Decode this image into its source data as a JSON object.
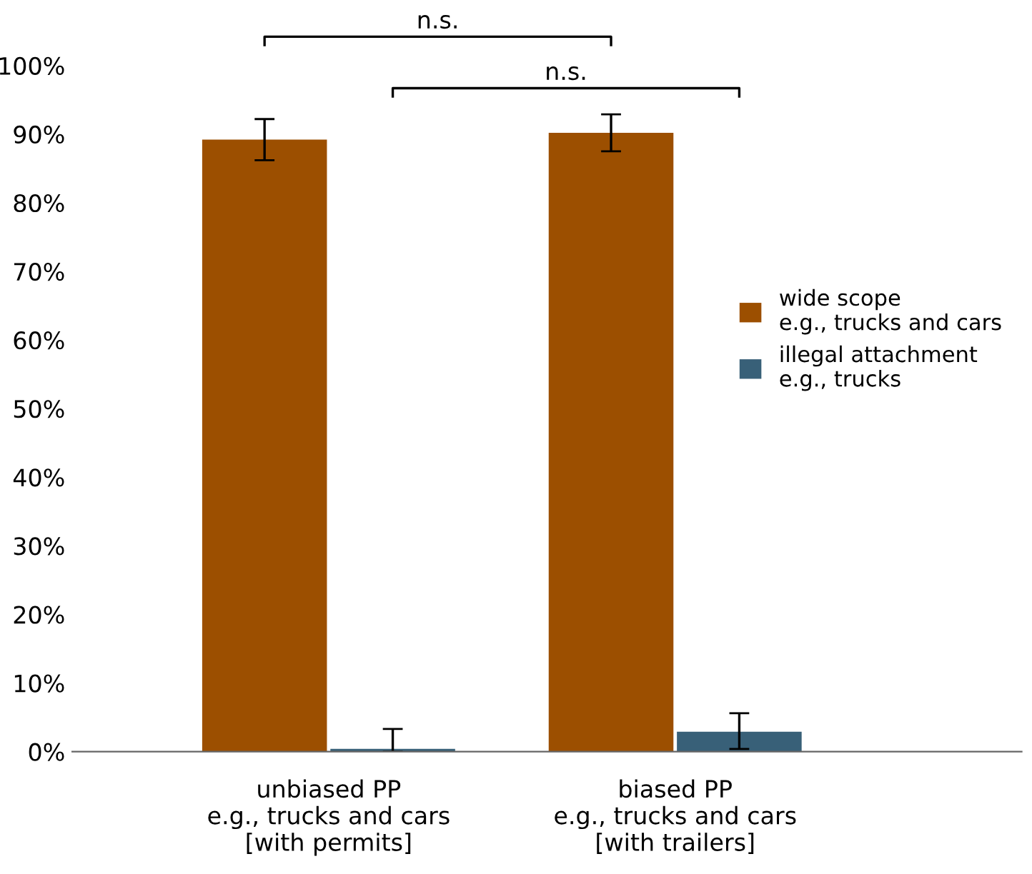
{
  "chart_data": {
    "type": "bar",
    "categories": [
      "unbiased PP\ne.g., trucks and cars\n[with permits]",
      "biased PP\ne.g., trucks and cars\n[with trailers]"
    ],
    "series": [
      {
        "name": "wide scope\ne.g., trucks and cars",
        "color": "#9c4f00",
        "values": [
          89.2,
          90.2
        ],
        "errors": [
          3.0,
          2.7
        ]
      },
      {
        "name": "illegal attachment\ne.g., trucks",
        "color": "#386078",
        "values": [
          0.4,
          2.9
        ],
        "errors": [
          [
            0,
            3.3
          ],
          [
            0.4,
            5.6
          ]
        ]
      }
    ],
    "ylim": [
      0,
      100
    ],
    "yticks": [
      {
        "value": 0,
        "label": "0%"
      },
      {
        "value": 10,
        "label": "10%"
      },
      {
        "value": 20,
        "label": "20%"
      },
      {
        "value": 30,
        "label": "30%"
      },
      {
        "value": 40,
        "label": "40%"
      },
      {
        "value": 50,
        "label": "50%"
      },
      {
        "value": 60,
        "label": "60%"
      },
      {
        "value": 70,
        "label": "70%"
      },
      {
        "value": 80,
        "label": "80%"
      },
      {
        "value": 90,
        "label": "90%"
      },
      {
        "value": 100,
        "label": "100%"
      }
    ],
    "annotations": [
      "n.s.",
      "n.s."
    ],
    "legend": "right",
    "grid": false
  }
}
